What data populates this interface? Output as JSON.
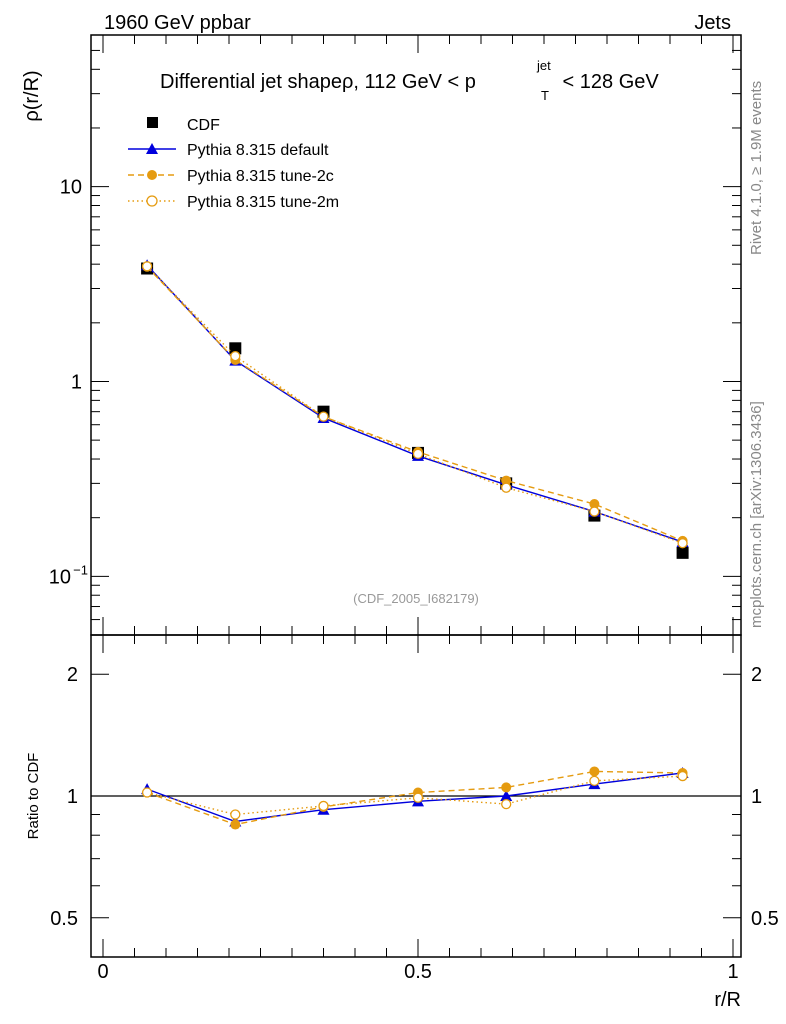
{
  "header": {
    "left_label": "1960 GeV ppbar",
    "right_label": "Jets",
    "side_text_top": "Rivet 4.1.0, ≥ 1.9M events",
    "side_text_bottom": "mcplots.cern.ch [arXiv:1306.3436]",
    "watermark": "(CDF_2005_I682179)"
  },
  "colors": {
    "data": "#000000",
    "default": "#0000dd",
    "tune2c": "#e59b10",
    "tune2m": "#e59b10"
  },
  "chart_data": [
    {
      "type": "line",
      "title": "Differential jet shapeρ, 112 GeV < p_T^jet < 128 GeV",
      "title_parts": {
        "prefix": "Differential jet shapeρ, 112 GeV < p",
        "sup": "jet",
        "sub": "T",
        "suffix": " < 128 GeV"
      },
      "xlabel": "",
      "ylabel": "ρ(r/R)",
      "yscale": "log",
      "xlim": [
        0,
        1
      ],
      "ylim": [
        0.05,
        60
      ],
      "yticks": [
        {
          "value": 0.1,
          "label": "10",
          "exp": "−1"
        },
        {
          "value": 1,
          "label": "1",
          "exp": ""
        },
        {
          "value": 10,
          "label": "10",
          "exp": ""
        }
      ],
      "x": [
        0.07,
        0.21,
        0.35,
        0.5,
        0.64,
        0.78,
        0.92
      ],
      "series": [
        {
          "name": "CDF",
          "key": "data",
          "marker": "square",
          "line": "none",
          "values": [
            3.8,
            1.48,
            0.7,
            0.43,
            0.3,
            0.205,
            0.132
          ]
        },
        {
          "name": "Pythia 8.315 default",
          "key": "default",
          "marker": "triangle",
          "line": "solid",
          "values": [
            3.95,
            1.28,
            0.65,
            0.415,
            0.295,
            0.215,
            0.15
          ]
        },
        {
          "name": "Pythia 8.315 tune-2c",
          "key": "tune2c",
          "marker": "circle",
          "line": "dashed",
          "values": [
            3.88,
            1.29,
            0.66,
            0.435,
            0.31,
            0.235,
            0.152
          ]
        },
        {
          "name": "Pythia 8.315 tune-2m",
          "key": "tune2m",
          "marker": "open-circle",
          "line": "dotted",
          "values": [
            3.9,
            1.35,
            0.66,
            0.425,
            0.285,
            0.215,
            0.148
          ]
        }
      ]
    },
    {
      "type": "line",
      "title": "",
      "xlabel": "r/R",
      "ylabel": "Ratio to CDF",
      "yscale": "log",
      "xlim": [
        0,
        1
      ],
      "ylim": [
        0.4,
        2.5
      ],
      "yticks": [
        {
          "value": 0.5,
          "label": "0.5"
        },
        {
          "value": 1,
          "label": "1"
        },
        {
          "value": 2,
          "label": "2"
        }
      ],
      "xticks": [
        {
          "value": 0,
          "label": "0"
        },
        {
          "value": 0.5,
          "label": "0.5"
        },
        {
          "value": 1,
          "label": "1"
        }
      ],
      "reference": 1,
      "x": [
        0.07,
        0.21,
        0.35,
        0.5,
        0.64,
        0.78,
        0.92
      ],
      "series": [
        {
          "name": "Pythia 8.315 default",
          "key": "default",
          "marker": "triangle",
          "line": "solid",
          "values": [
            1.04,
            0.865,
            0.925,
            0.97,
            1.0,
            1.07,
            1.14
          ]
        },
        {
          "name": "Pythia 8.315 tune-2c",
          "key": "tune2c",
          "marker": "circle",
          "line": "dashed",
          "values": [
            1.02,
            0.85,
            0.94,
            1.02,
            1.05,
            1.15,
            1.14
          ]
        },
        {
          "name": "Pythia 8.315 tune-2m",
          "key": "tune2m",
          "marker": "open-circle",
          "line": "dotted",
          "values": [
            1.02,
            0.9,
            0.945,
            0.99,
            0.955,
            1.09,
            1.12
          ]
        }
      ]
    }
  ]
}
